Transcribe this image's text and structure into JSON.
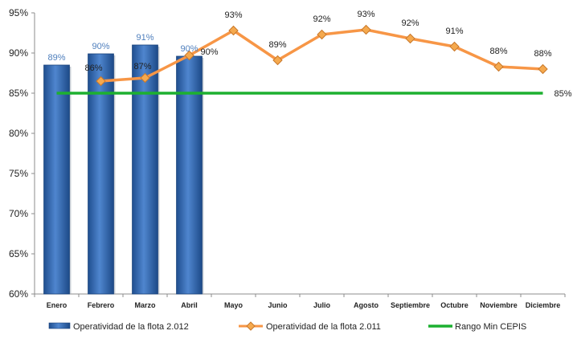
{
  "chart_data": {
    "type": "bar",
    "categories": [
      "Enero",
      "Febrero",
      "Marzo",
      "Abril",
      "Mayo",
      "Junio",
      "Julio",
      "Agosto",
      "Septiembre",
      "Octubre",
      "Noviembre",
      "Diciembre"
    ],
    "ylim": [
      60,
      95
    ],
    "yticks": [
      "60%",
      "65%",
      "70%",
      "75%",
      "80%",
      "85%",
      "90%",
      "95%"
    ],
    "ytick_values": [
      60,
      65,
      70,
      75,
      80,
      85,
      90,
      95
    ],
    "grid": false,
    "legend_position": "bottom",
    "series": [
      {
        "name": "Operatividad de la flota 2.012",
        "type": "bar",
        "color": "#2b5fa8",
        "values": [
          88.5,
          89.9,
          91.0,
          89.6,
          null,
          null,
          null,
          null,
          null,
          null,
          null,
          null
        ],
        "labels": [
          "89%",
          "90%",
          "91%",
          "90%",
          "",
          "",
          "",
          "",
          "",
          "",
          "",
          ""
        ]
      },
      {
        "name": "Operatividad de la flota 2.011",
        "type": "line",
        "color": "#f79646",
        "marker_color": "#f5a94e",
        "values": [
          null,
          86.5,
          86.9,
          89.7,
          92.8,
          89.1,
          92.3,
          92.9,
          91.8,
          90.8,
          88.3,
          88.0
        ],
        "labels": [
          "",
          "86%",
          "87%",
          "90%",
          "93%",
          "89%",
          "92%",
          "93%",
          "92%",
          "91%",
          "88%",
          "88%"
        ]
      },
      {
        "name": "Rango Min CEPIS",
        "type": "line",
        "color": "#1db030",
        "values": [
          85,
          85,
          85,
          85,
          85,
          85,
          85,
          85,
          85,
          85,
          85,
          85
        ],
        "end_label": "85%"
      }
    ]
  }
}
